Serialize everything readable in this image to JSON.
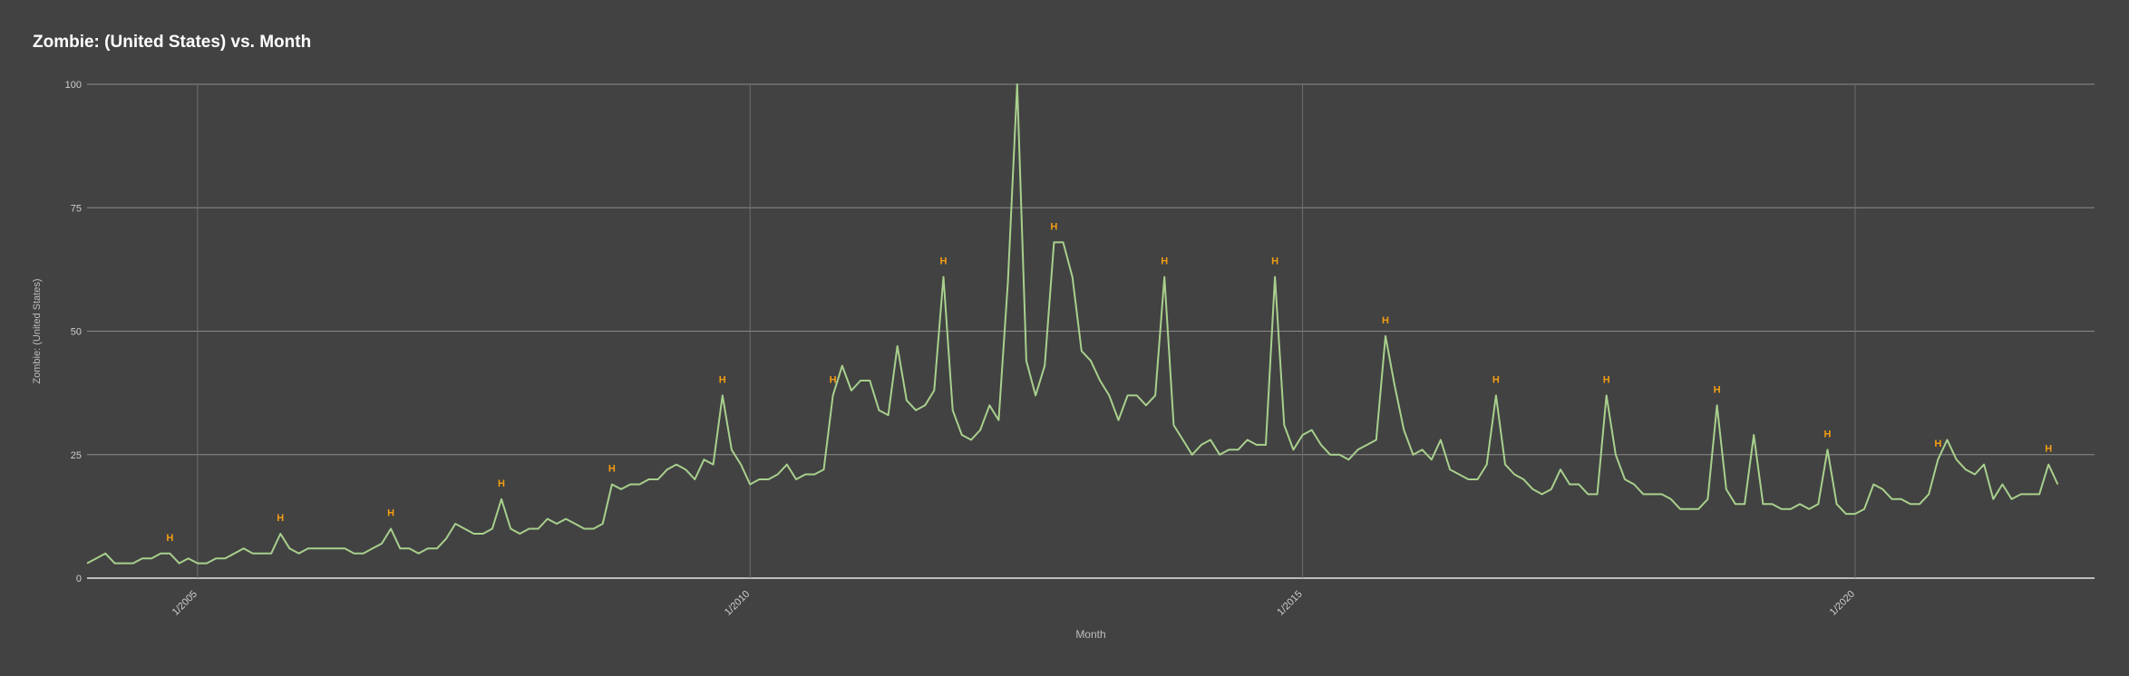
{
  "chart_data": {
    "type": "line",
    "title": "Zombie: (United States) vs. Month",
    "xlabel": "Month",
    "ylabel": "Zombie: (United States)",
    "ylim": [
      0,
      100
    ],
    "yticks": [
      0,
      25,
      50,
      75,
      100
    ],
    "xlim": [
      "2004-01",
      "2022-03"
    ],
    "xticks": [
      {
        "label": "1/2005",
        "date": "2005-01"
      },
      {
        "label": "1/2010",
        "date": "2010-01"
      },
      {
        "label": "1/2015",
        "date": "2015-01"
      },
      {
        "label": "1/2020",
        "date": "2020-01"
      }
    ],
    "grid": true,
    "legend": "none",
    "series": [
      {
        "name": "",
        "color": "#a8d08d",
        "start": "2004-01",
        "values": [
          3,
          4,
          5,
          3,
          3,
          3,
          4,
          4,
          5,
          5,
          3,
          4,
          3,
          3,
          4,
          4,
          5,
          6,
          5,
          5,
          5,
          9,
          6,
          5,
          6,
          6,
          6,
          6,
          6,
          5,
          5,
          6,
          7,
          10,
          6,
          6,
          5,
          6,
          6,
          8,
          11,
          10,
          9,
          9,
          10,
          16,
          10,
          9,
          10,
          10,
          12,
          11,
          12,
          11,
          10,
          10,
          11,
          19,
          18,
          19,
          19,
          20,
          20,
          22,
          23,
          22,
          20,
          24,
          23,
          37,
          26,
          23,
          19,
          20,
          20,
          21,
          23,
          20,
          21,
          21,
          22,
          37,
          43,
          38,
          40,
          40,
          34,
          33,
          47,
          36,
          34,
          35,
          38,
          61,
          34,
          29,
          28,
          30,
          35,
          32,
          60,
          100,
          44,
          37,
          43,
          68,
          68,
          61,
          46,
          44,
          40,
          37,
          32,
          37,
          37,
          35,
          37,
          61,
          31,
          28,
          25,
          27,
          28,
          25,
          26,
          26,
          28,
          27,
          27,
          61,
          31,
          26,
          29,
          30,
          27,
          25,
          25,
          24,
          26,
          27,
          28,
          49,
          39,
          30,
          25,
          26,
          24,
          28,
          22,
          21,
          20,
          20,
          23,
          37,
          23,
          21,
          20,
          18,
          17,
          18,
          22,
          19,
          19,
          17,
          17,
          37,
          25,
          20,
          19,
          17,
          17,
          17,
          16,
          14,
          14,
          14,
          16,
          35,
          18,
          15,
          15,
          29,
          15,
          15,
          14,
          14,
          15,
          14,
          15,
          26,
          15,
          13,
          13,
          14,
          19,
          18,
          16,
          16,
          15,
          15,
          17,
          24,
          28,
          24,
          22,
          21,
          23,
          16,
          19,
          16,
          17,
          17,
          17,
          23,
          19
        ]
      }
    ],
    "annotations": [
      {
        "label": "H",
        "date": "2004-10"
      },
      {
        "label": "H",
        "date": "2005-10"
      },
      {
        "label": "H",
        "date": "2006-10"
      },
      {
        "label": "H",
        "date": "2007-10"
      },
      {
        "label": "H",
        "date": "2008-10"
      },
      {
        "label": "H",
        "date": "2009-10"
      },
      {
        "label": "H",
        "date": "2010-10"
      },
      {
        "label": "H",
        "date": "2011-10"
      },
      {
        "label": "H",
        "date": "2012-10"
      },
      {
        "label": "H",
        "date": "2013-10"
      },
      {
        "label": "H",
        "date": "2014-10"
      },
      {
        "label": "H",
        "date": "2015-10"
      },
      {
        "label": "H",
        "date": "2016-10"
      },
      {
        "label": "H",
        "date": "2017-10"
      },
      {
        "label": "H",
        "date": "2018-10"
      },
      {
        "label": "H",
        "date": "2019-10"
      },
      {
        "label": "H",
        "date": "2020-10"
      },
      {
        "label": "H",
        "date": "2021-10"
      }
    ],
    "annotation_color": "#f39c12"
  }
}
